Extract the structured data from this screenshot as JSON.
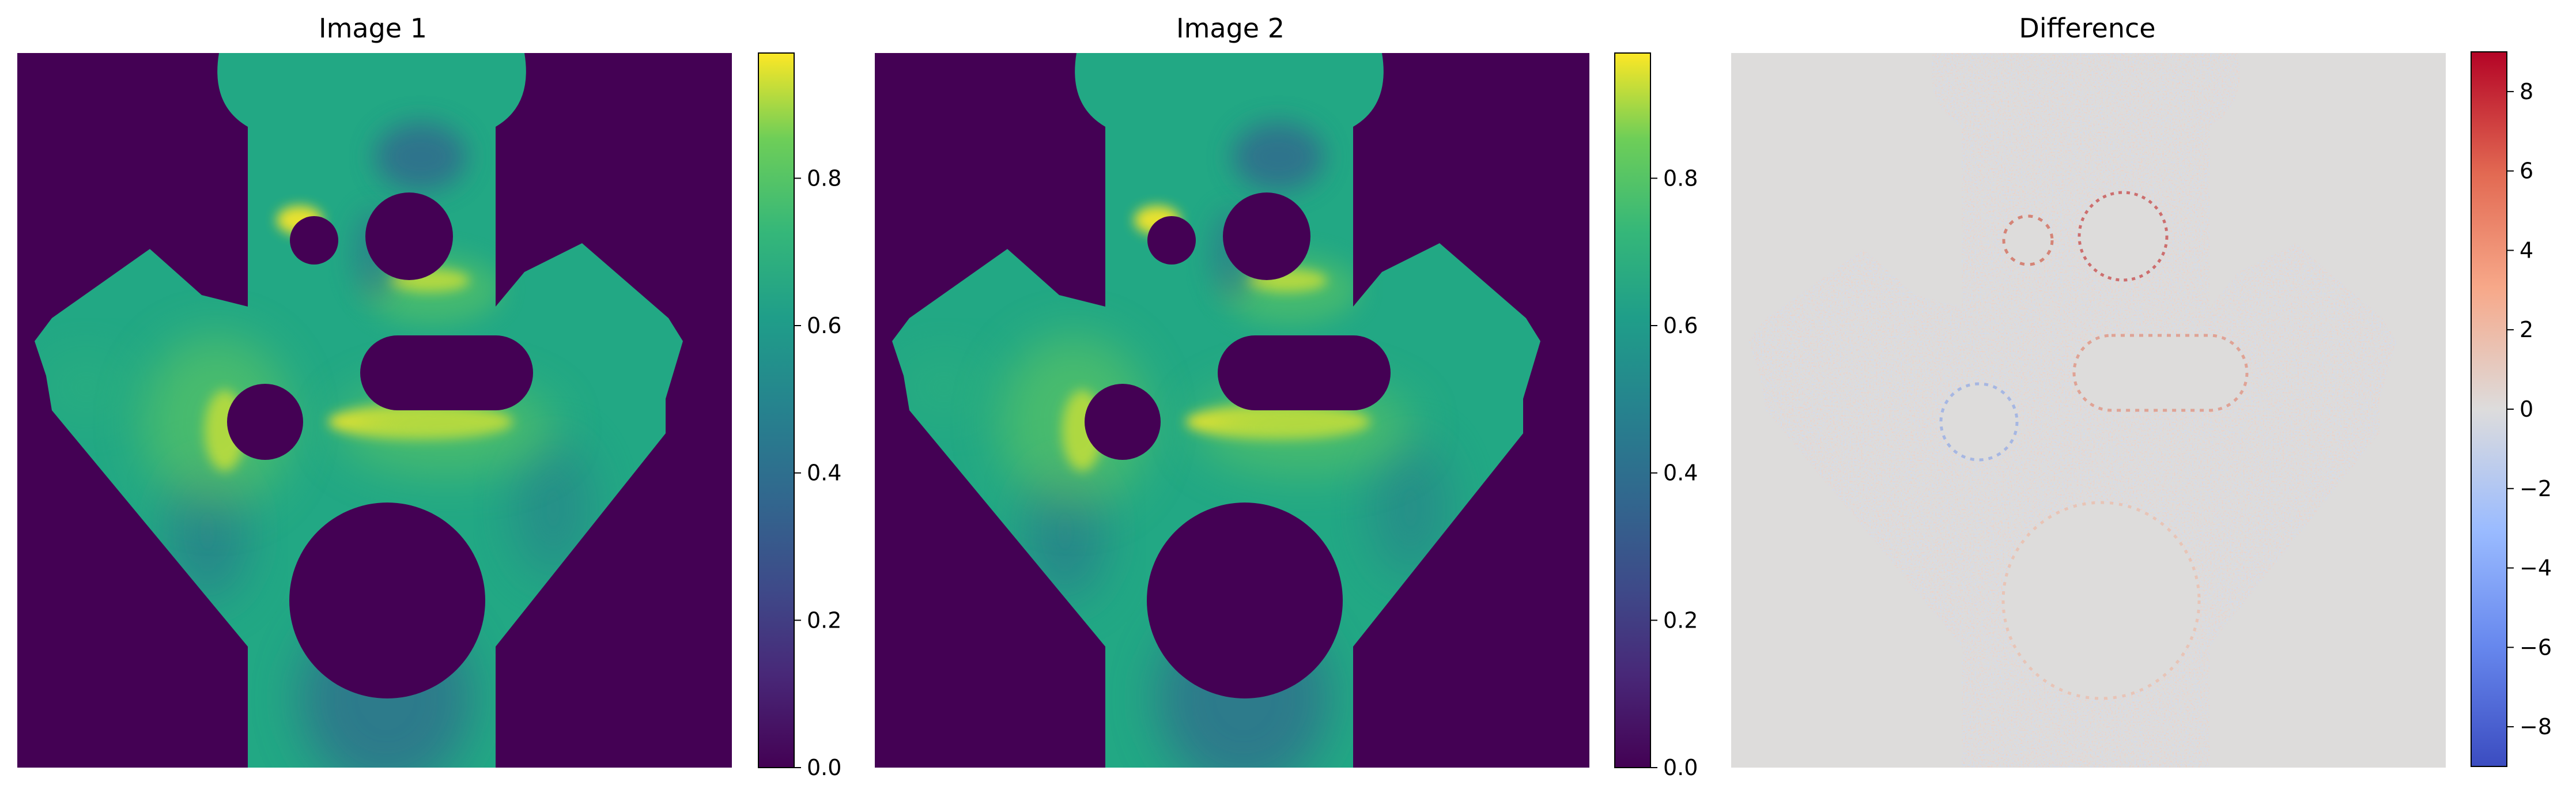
{
  "chart_data": [
    {
      "type": "heatmap",
      "title": "Image 1",
      "colormap": "viridis",
      "axes_visible": false,
      "colorbar": {
        "range": [
          0.0,
          0.97
        ],
        "ticks": [
          0.0,
          0.2,
          0.4,
          0.6,
          0.8
        ],
        "tick_labels": [
          "0.0",
          "0.2",
          "0.4",
          "0.6",
          "0.8"
        ]
      }
    },
    {
      "type": "heatmap",
      "title": "Image 2",
      "colormap": "viridis",
      "axes_visible": false,
      "colorbar": {
        "range": [
          0.0,
          0.97
        ],
        "ticks": [
          0.0,
          0.2,
          0.4,
          0.6,
          0.8
        ],
        "tick_labels": [
          "0.0",
          "0.2",
          "0.4",
          "0.6",
          "0.8"
        ]
      }
    },
    {
      "type": "heatmap",
      "title": "Difference",
      "colormap": "coolwarm",
      "axes_visible": false,
      "colorbar": {
        "range": [
          -9,
          9
        ],
        "ticks": [
          -8,
          -6,
          -4,
          -2,
          0,
          2,
          4,
          6,
          8
        ],
        "tick_labels": [
          "−8",
          "−6",
          "−4",
          "−2",
          "0",
          "2",
          "4",
          "6",
          "8"
        ]
      }
    }
  ],
  "colors": {
    "background_outside_shape": "#440154",
    "field_base": "#22a884",
    "field_hot": "#fde725",
    "field_cool": "#31688e",
    "difference_neutral": "#dddcdb",
    "difference_positive": "#f4a582",
    "difference_negative": "#9ec2f5"
  }
}
